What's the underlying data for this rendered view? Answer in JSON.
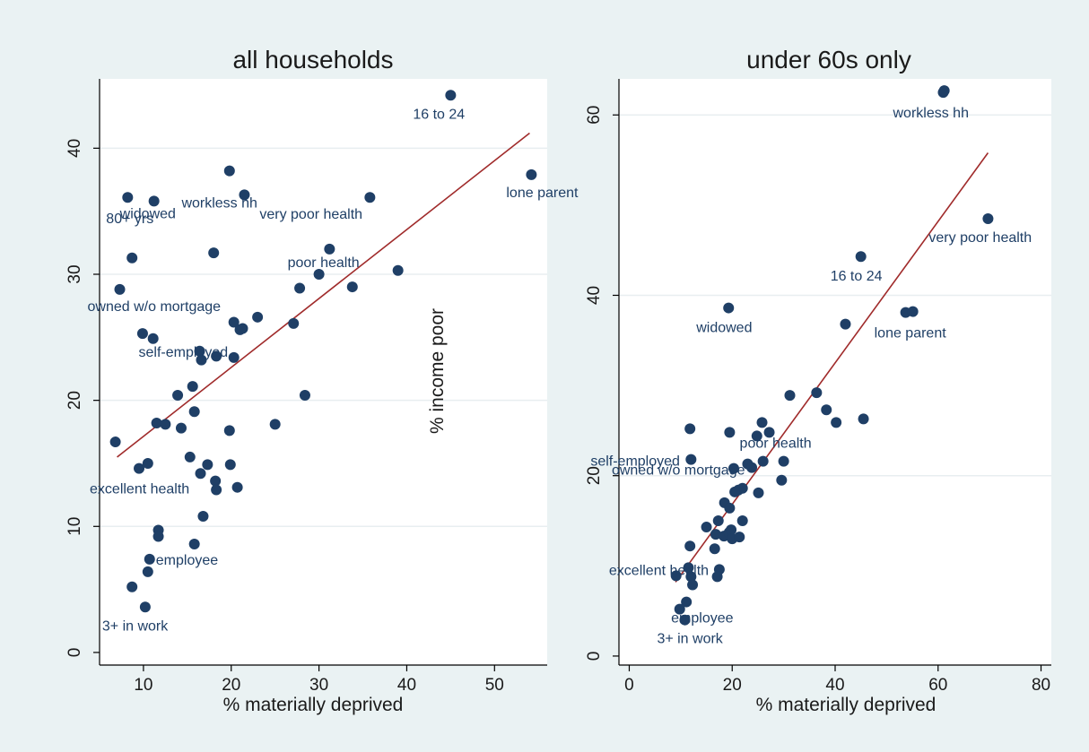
{
  "chart_data": [
    {
      "type": "scatter",
      "title": "all households",
      "xlabel": "% materially deprived",
      "ylabel": "% income poor",
      "xlim": [
        5,
        56
      ],
      "ylim": [
        -1,
        45.5
      ],
      "xticks": [
        10,
        20,
        30,
        40,
        50
      ],
      "yticks": [
        0,
        10,
        20,
        30,
        40
      ],
      "grid": "horizontal",
      "fit_line": [
        [
          7,
          15.5
        ],
        [
          54,
          41.2
        ]
      ],
      "points": [
        {
          "x": 45,
          "y": 44.2,
          "label": "16 to 24"
        },
        {
          "x": 19.8,
          "y": 38.2,
          "label": ""
        },
        {
          "x": 21.5,
          "y": 36.3,
          "label": "workless hh"
        },
        {
          "x": 35.8,
          "y": 36.1,
          "label": "very poor health"
        },
        {
          "x": 54.2,
          "y": 37.9,
          "label": "lone parent"
        },
        {
          "x": 8.2,
          "y": 36.1,
          "label": "80+ yrs"
        },
        {
          "x": 11.2,
          "y": 35.8,
          "label": "widowed"
        },
        {
          "x": 8.7,
          "y": 31.3,
          "label": ""
        },
        {
          "x": 18,
          "y": 31.7,
          "label": ""
        },
        {
          "x": 31.2,
          "y": 32,
          "label": ""
        },
        {
          "x": 30,
          "y": 30,
          "label": "poor health"
        },
        {
          "x": 39,
          "y": 30.3,
          "label": ""
        },
        {
          "x": 7.3,
          "y": 28.8,
          "label": "owned w/o mortgage"
        },
        {
          "x": 27.8,
          "y": 28.9,
          "label": ""
        },
        {
          "x": 33.8,
          "y": 29,
          "label": ""
        },
        {
          "x": 23,
          "y": 26.6,
          "label": ""
        },
        {
          "x": 20.3,
          "y": 26.2,
          "label": ""
        },
        {
          "x": 21,
          "y": 25.6,
          "label": ""
        },
        {
          "x": 21.3,
          "y": 25.7,
          "label": ""
        },
        {
          "x": 27.1,
          "y": 26.1,
          "label": ""
        },
        {
          "x": 9.9,
          "y": 25.3,
          "label": ""
        },
        {
          "x": 11.1,
          "y": 24.9,
          "label": ""
        },
        {
          "x": 16.4,
          "y": 23.9,
          "label": "self-employed"
        },
        {
          "x": 16.6,
          "y": 23.2,
          "label": ""
        },
        {
          "x": 18.3,
          "y": 23.5,
          "label": ""
        },
        {
          "x": 20.3,
          "y": 23.4,
          "label": ""
        },
        {
          "x": 15.6,
          "y": 21.1,
          "label": ""
        },
        {
          "x": 13.9,
          "y": 20.4,
          "label": ""
        },
        {
          "x": 28.4,
          "y": 20.4,
          "label": ""
        },
        {
          "x": 15.8,
          "y": 19.1,
          "label": ""
        },
        {
          "x": 11.5,
          "y": 18.2,
          "label": ""
        },
        {
          "x": 12.5,
          "y": 18.1,
          "label": ""
        },
        {
          "x": 14.3,
          "y": 17.8,
          "label": ""
        },
        {
          "x": 19.8,
          "y": 17.6,
          "label": ""
        },
        {
          "x": 25,
          "y": 18.1,
          "label": ""
        },
        {
          "x": 6.8,
          "y": 16.7,
          "label": ""
        },
        {
          "x": 15.3,
          "y": 15.5,
          "label": ""
        },
        {
          "x": 10.5,
          "y": 15,
          "label": ""
        },
        {
          "x": 9.5,
          "y": 14.6,
          "label": "excellent health"
        },
        {
          "x": 17.3,
          "y": 14.9,
          "label": ""
        },
        {
          "x": 19.9,
          "y": 14.9,
          "label": ""
        },
        {
          "x": 16.5,
          "y": 14.2,
          "label": ""
        },
        {
          "x": 18.2,
          "y": 13.6,
          "label": ""
        },
        {
          "x": 18.3,
          "y": 12.9,
          "label": ""
        },
        {
          "x": 20.7,
          "y": 13.1,
          "label": ""
        },
        {
          "x": 16.8,
          "y": 10.8,
          "label": ""
        },
        {
          "x": 11.7,
          "y": 9.7,
          "label": ""
        },
        {
          "x": 11.7,
          "y": 9.2,
          "label": ""
        },
        {
          "x": 15.8,
          "y": 8.6,
          "label": ""
        },
        {
          "x": 10.7,
          "y": 7.4,
          "label": "employee"
        },
        {
          "x": 10.5,
          "y": 6.4,
          "label": ""
        },
        {
          "x": 8.7,
          "y": 5.2,
          "label": ""
        },
        {
          "x": 10.2,
          "y": 3.6,
          "label": "3+ in work"
        }
      ]
    },
    {
      "type": "scatter",
      "title": "under 60s only",
      "xlabel": "% materially deprived",
      "ylabel": "",
      "xlim": [
        -2,
        82
      ],
      "ylim": [
        -1,
        64
      ],
      "xticks": [
        0,
        20,
        40,
        60,
        80
      ],
      "yticks": [
        0,
        20,
        40,
        60
      ],
      "grid": "horizontal",
      "fit_line": [
        [
          9,
          8.2
        ],
        [
          69.7,
          55.8
        ]
      ],
      "points": [
        {
          "x": 61,
          "y": 62.5,
          "label": "workless hh"
        },
        {
          "x": 61.2,
          "y": 62.7,
          "label": ""
        },
        {
          "x": 69.7,
          "y": 48.5,
          "label": "very poor health"
        },
        {
          "x": 45,
          "y": 44.3,
          "label": "16 to 24"
        },
        {
          "x": 19.3,
          "y": 38.6,
          "label": "widowed"
        },
        {
          "x": 42,
          "y": 36.8,
          "label": ""
        },
        {
          "x": 53.7,
          "y": 38.1,
          "label": "lone parent"
        },
        {
          "x": 55.1,
          "y": 38.2,
          "label": ""
        },
        {
          "x": 36.4,
          "y": 29.2,
          "label": ""
        },
        {
          "x": 31.2,
          "y": 28.9,
          "label": ""
        },
        {
          "x": 38.3,
          "y": 27.3,
          "label": ""
        },
        {
          "x": 40.2,
          "y": 25.9,
          "label": ""
        },
        {
          "x": 45.5,
          "y": 26.3,
          "label": "poor health"
        },
        {
          "x": 25.8,
          "y": 25.9,
          "label": ""
        },
        {
          "x": 27.2,
          "y": 24.8,
          "label": ""
        },
        {
          "x": 24.8,
          "y": 24.4,
          "label": ""
        },
        {
          "x": 11.8,
          "y": 25.2,
          "label": ""
        },
        {
          "x": 19.5,
          "y": 24.8,
          "label": ""
        },
        {
          "x": 12,
          "y": 21.8,
          "label": "self-employed"
        },
        {
          "x": 26,
          "y": 21.6,
          "label": ""
        },
        {
          "x": 30,
          "y": 21.6,
          "label": ""
        },
        {
          "x": 23,
          "y": 21.3,
          "label": ""
        },
        {
          "x": 23.8,
          "y": 20.9,
          "label": ""
        },
        {
          "x": 20.3,
          "y": 20.8,
          "label": "owned w/o mortgage"
        },
        {
          "x": 29.6,
          "y": 19.5,
          "label": ""
        },
        {
          "x": 22,
          "y": 18.6,
          "label": ""
        },
        {
          "x": 21.2,
          "y": 18.4,
          "label": ""
        },
        {
          "x": 20.5,
          "y": 18.2,
          "label": ""
        },
        {
          "x": 25.1,
          "y": 18.1,
          "label": ""
        },
        {
          "x": 18.5,
          "y": 17,
          "label": ""
        },
        {
          "x": 19.5,
          "y": 16.4,
          "label": ""
        },
        {
          "x": 17.3,
          "y": 15,
          "label": ""
        },
        {
          "x": 22,
          "y": 15,
          "label": ""
        },
        {
          "x": 15,
          "y": 14.3,
          "label": ""
        },
        {
          "x": 16.8,
          "y": 13.5,
          "label": ""
        },
        {
          "x": 18.4,
          "y": 13.3,
          "label": ""
        },
        {
          "x": 19.4,
          "y": 13.7,
          "label": ""
        },
        {
          "x": 19.8,
          "y": 14,
          "label": ""
        },
        {
          "x": 20,
          "y": 13,
          "label": ""
        },
        {
          "x": 21.4,
          "y": 13.2,
          "label": ""
        },
        {
          "x": 16.6,
          "y": 11.9,
          "label": ""
        },
        {
          "x": 11.8,
          "y": 12.2,
          "label": ""
        },
        {
          "x": 17.5,
          "y": 9.6,
          "label": "excellent health"
        },
        {
          "x": 11.5,
          "y": 9.8,
          "label": ""
        },
        {
          "x": 17.1,
          "y": 8.8,
          "label": ""
        },
        {
          "x": 9.1,
          "y": 8.9,
          "label": ""
        },
        {
          "x": 12,
          "y": 8.8,
          "label": ""
        },
        {
          "x": 12.3,
          "y": 7.9,
          "label": ""
        },
        {
          "x": 11.1,
          "y": 6,
          "label": "employee"
        },
        {
          "x": 9.8,
          "y": 5.2,
          "label": ""
        },
        {
          "x": 10.8,
          "y": 4,
          "label": "3+ in work"
        }
      ]
    }
  ]
}
